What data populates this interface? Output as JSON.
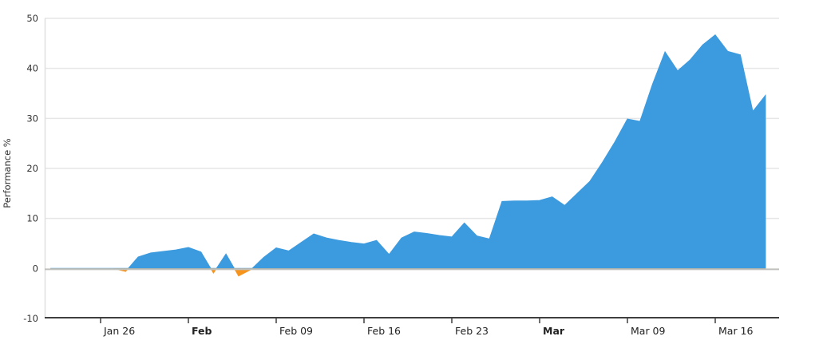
{
  "chart_data": {
    "type": "area",
    "title": "",
    "xlabel": "",
    "ylabel": "Performance %",
    "ylim": [
      -10,
      50
    ],
    "grid": true,
    "legend": false,
    "y_ticks": [
      50,
      40,
      30,
      20,
      10,
      0,
      -10
    ],
    "x_ticks": [
      {
        "date": "Jan 26",
        "label": "Jan 26",
        "bold": false
      },
      {
        "date": "Feb 02",
        "label": "Feb",
        "bold": true
      },
      {
        "date": "Feb 09",
        "label": "Feb 09",
        "bold": false
      },
      {
        "date": "Feb 16",
        "label": "Feb 16",
        "bold": false
      },
      {
        "date": "Feb 23",
        "label": "Feb 23",
        "bold": false
      },
      {
        "date": "Mar 02",
        "label": "Mar",
        "bold": true
      },
      {
        "date": "Mar 09",
        "label": "Mar 09",
        "bold": false
      },
      {
        "date": "Mar 16",
        "label": "Mar 16",
        "bold": false
      }
    ],
    "x": [
      "Jan 22",
      "Jan 23",
      "Jan 24",
      "Jan 25",
      "Jan 26",
      "Jan 27",
      "Jan 28",
      "Jan 29",
      "Jan 30",
      "Jan 31",
      "Feb 01",
      "Feb 02",
      "Feb 03",
      "Feb 04",
      "Feb 05",
      "Feb 06",
      "Feb 07",
      "Feb 08",
      "Feb 09",
      "Feb 10",
      "Feb 11",
      "Feb 12",
      "Feb 13",
      "Feb 14",
      "Feb 15",
      "Feb 16",
      "Feb 17",
      "Feb 18",
      "Feb 19",
      "Feb 20",
      "Feb 21",
      "Feb 22",
      "Feb 23",
      "Feb 24",
      "Feb 25",
      "Feb 26",
      "Feb 27",
      "Feb 28",
      "Mar 01",
      "Mar 02",
      "Mar 03",
      "Mar 04",
      "Mar 05",
      "Mar 06",
      "Mar 07",
      "Mar 08",
      "Mar 09",
      "Mar 10",
      "Mar 11",
      "Mar 12",
      "Mar 13",
      "Mar 14",
      "Mar 15",
      "Mar 16",
      "Mar 17",
      "Mar 18",
      "Mar 19",
      "Mar 20"
    ],
    "series": [
      {
        "name": "Performance %",
        "values": [
          0,
          0,
          0,
          0,
          0,
          0,
          -0.6,
          2.3,
          3.1,
          3.4,
          3.7,
          4.2,
          3.3,
          -0.9,
          2.9,
          -1.5,
          -0.2,
          2.2,
          4.1,
          3.5,
          5.2,
          6.9,
          6.1,
          5.6,
          5.2,
          4.9,
          5.6,
          2.8,
          6.1,
          7.3,
          7.0,
          6.6,
          6.3,
          9.1,
          6.5,
          5.9,
          13.4,
          13.5,
          13.5,
          13.6,
          14.3,
          12.6,
          15.0,
          17.4,
          21.2,
          25.3,
          29.9,
          29.4,
          36.8,
          43.3,
          39.5,
          41.7,
          44.7,
          46.7,
          43.4,
          42.7,
          31.4,
          34.6
        ]
      }
    ]
  },
  "colors": {
    "positive_area": "#3C9ADE",
    "negative_area": "#F7941E",
    "gridline": "#E6E6E6",
    "zero_line": "#C0C0BD",
    "axis_line": "#3F3F3F",
    "plot_border": "#E0E0E0",
    "label_text": "#333333",
    "background": "#FFFFFF"
  }
}
